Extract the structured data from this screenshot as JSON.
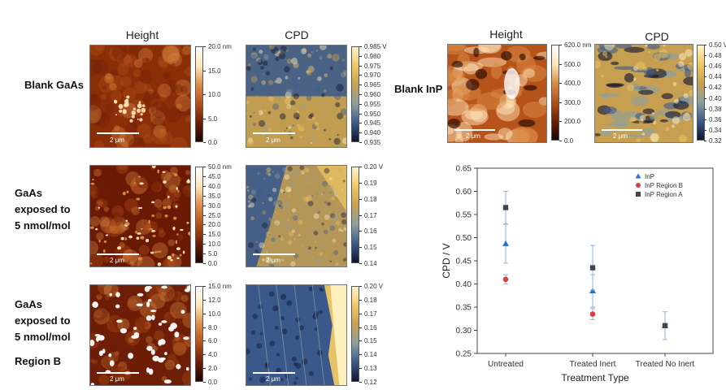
{
  "left_panel": {
    "col_titles": [
      "Height",
      "CPD"
    ],
    "rows": [
      {
        "label_lines": [
          "Blank GaAs"
        ],
        "scale_label": "2 μm",
        "height_ticks": [
          "20.0 nm",
          "15.0",
          "10.0",
          "5.0",
          "0.0"
        ],
        "cpd_ticks": [
          "0.985 V",
          "0.980",
          "0.975",
          "0.970",
          "0.965",
          "0.960",
          "0.955",
          "0.950",
          "0.945",
          "0.940",
          "0.935"
        ]
      },
      {
        "label_lines": [
          "GaAs",
          "exposed to",
          "5 nmol/mol"
        ],
        "scale_label": "2 μm",
        "height_ticks": [
          "50.0 nm",
          "45.0",
          "40.0",
          "35.0",
          "30.0",
          "25.0",
          "20.0",
          "15.0",
          "10.0",
          "5.0",
          "0.0"
        ],
        "cpd_ticks": [
          "0.20 V",
          "0.19",
          "0.18",
          "0.17",
          "0.16",
          "0.15",
          "0.14"
        ]
      },
      {
        "label_lines": [
          "GaAs",
          "exposed to",
          "5 nmol/mol",
          "",
          "Region B"
        ],
        "scale_label": "2 μm",
        "height_ticks": [
          "15.0 nm",
          "12.0",
          "10.0",
          "8.0",
          "6.0",
          "4.0",
          "2.0",
          "0.0"
        ],
        "cpd_ticks": [
          "0.20 V",
          "0.18",
          "0.17",
          "0.16",
          "0.15",
          "0.14",
          "0.13",
          "0.12"
        ]
      }
    ]
  },
  "right_panel": {
    "col_titles": [
      "Height",
      "CPD"
    ],
    "row_label": "Blank InP",
    "scale_label": "2 μm",
    "height_ticks": [
      "620.0 nm",
      "500.0",
      "400.0",
      "300.0",
      "200.0",
      "0.0"
    ],
    "cpd_ticks": [
      "0.50 V",
      "0.48",
      "0.46",
      "0.44",
      "0.42",
      "0.40",
      "0.38",
      "0.36",
      "0.34",
      "0.32"
    ]
  },
  "colors": {
    "height_map": [
      "#1a0500",
      "#6e1e05",
      "#b4501a",
      "#dc8c46",
      "#ffe6b9",
      "#ffffff"
    ],
    "cpd_map": [
      "#0f1432",
      "#3c5a8c",
      "#8ca0a0",
      "#c8a050",
      "#f0c864",
      "#fff5c8"
    ],
    "inp": "#2b6fd1",
    "inp_region_b": "#e03a3a",
    "inp_region_a": "#444444",
    "errorbar": "#8ab4e8"
  },
  "chart_data": {
    "type": "scatter",
    "title": "",
    "xlabel": "Treatment Type",
    "ylabel": "CPD / V",
    "categories": [
      "Untreated",
      "Treated Inert",
      "Treated No Inert"
    ],
    "ylim": [
      0.25,
      0.65
    ],
    "yticks": [
      "0.25",
      "0.30",
      "0.35",
      "0.40",
      "0.45",
      "0.50",
      "0.55",
      "0.60",
      "0.65"
    ],
    "legend_position": "top-right",
    "grid": false,
    "series": [
      {
        "name": "InP",
        "marker": "triangle",
        "values": [
          0.487,
          0.385,
          0.31
        ],
        "err": [
          0.042,
          0.035,
          0.03
        ]
      },
      {
        "name": "InP Region B",
        "marker": "circle",
        "values": [
          0.41,
          0.335,
          null
        ],
        "err": [
          0.01,
          0.012,
          null
        ]
      },
      {
        "name": "InP Region A",
        "marker": "square",
        "values": [
          0.565,
          0.435,
          0.31
        ],
        "err": [
          0.035,
          0.048,
          0.004
        ]
      }
    ]
  }
}
